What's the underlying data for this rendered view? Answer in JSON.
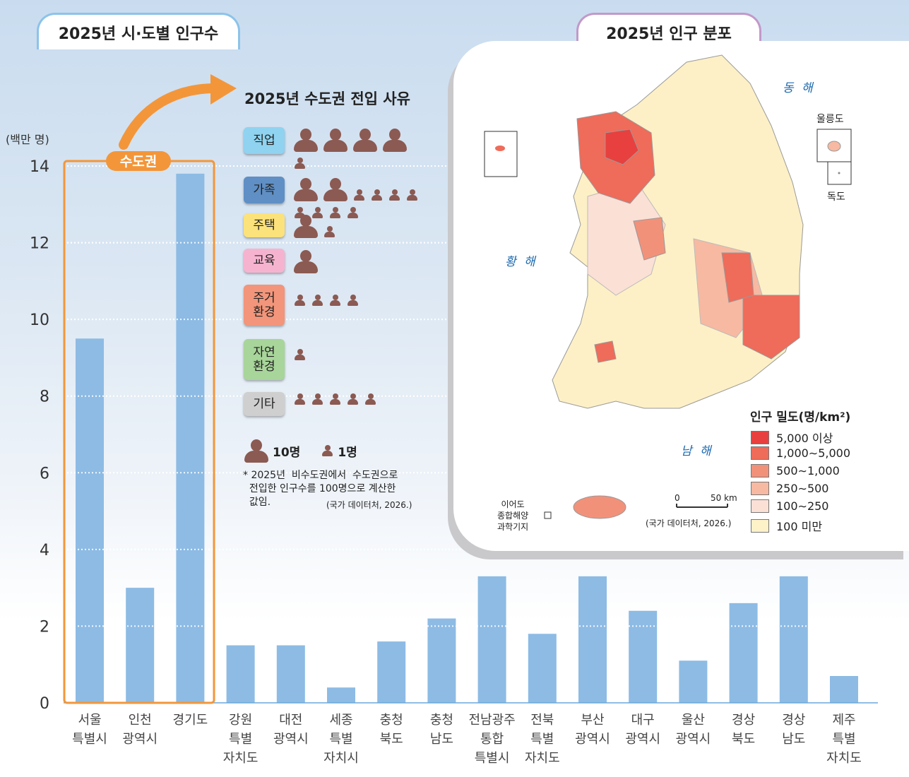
{
  "left_tab": {
    "title": "2025년 시·도별 인구수"
  },
  "right_tab": {
    "title": "2025년 인구 분포"
  },
  "capital_region": {
    "label": "수도권"
  },
  "colors": {
    "bar": "#8dbbe4",
    "capital_box": "#f39639",
    "density": [
      "#e8403e",
      "#ef6b5a",
      "#f2917a",
      "#f7b9a2",
      "#fbe0d6",
      "#fdf2c8"
    ]
  },
  "chart_data": {
    "type": "bar",
    "ylabel": "(백만 명)",
    "ylim": [
      0,
      14
    ],
    "yticks": [
      0,
      2,
      4,
      6,
      8,
      10,
      12,
      14
    ],
    "grid": "dotted horizontal",
    "categories": [
      [
        "서울",
        "특별시"
      ],
      [
        "인천",
        "광역시"
      ],
      [
        "경기도"
      ],
      [
        "강원",
        "특별",
        "자치도"
      ],
      [
        "대전",
        "광역시"
      ],
      [
        "세종",
        "특별",
        "자치시"
      ],
      [
        "충청",
        "북도"
      ],
      [
        "충청",
        "남도"
      ],
      [
        "전남광주",
        "통합",
        "특별시"
      ],
      [
        "전북",
        "특별",
        "자치도"
      ],
      [
        "부산",
        "광역시"
      ],
      [
        "대구",
        "광역시"
      ],
      [
        "울산",
        "광역시"
      ],
      [
        "경상",
        "북도"
      ],
      [
        "경상",
        "남도"
      ],
      [
        "제주",
        "특별",
        "자치도"
      ]
    ],
    "values": [
      9.5,
      3.0,
      13.8,
      1.5,
      1.5,
      0.4,
      1.6,
      2.2,
      3.3,
      1.8,
      3.3,
      2.4,
      1.1,
      2.6,
      3.3,
      0.7
    ]
  },
  "migration": {
    "title": "2025년 수도권 전입 사유",
    "reasons": [
      {
        "label": "직업",
        "value": 41,
        "color": "#8fd3f0"
      },
      {
        "label": "가족",
        "value": 28,
        "color": "#5f8fc4"
      },
      {
        "label": "주택",
        "value": 11,
        "color": "#fbe27a"
      },
      {
        "label": "교육",
        "value": 10,
        "color": "#f6b3d0"
      },
      {
        "label": "주거\n환경",
        "value": 4,
        "color": "#f2957a"
      },
      {
        "label": "자연\n환경",
        "value": 1,
        "color": "#a8d59a"
      },
      {
        "label": "기타",
        "value": 5,
        "color": "#cfcfcf"
      }
    ],
    "legend_big": "10명",
    "legend_small": "1명",
    "note": "* 2025년  비수도권에서  수도권으로\n  전입한 인구수를 100명으로 계산한\n  값임.",
    "source": "(국가 데이터처, 2026.)"
  },
  "map": {
    "seas": {
      "east": "동 해",
      "west": "황 해",
      "south": "남 해"
    },
    "islands": {
      "ulleung": "울릉도",
      "dokdo": "독도",
      "ieodo": "이어도\n종합해양\n과학기지"
    },
    "scale": {
      "zero": "0",
      "km": "50 km"
    },
    "source": "(국가 데이터처, 2026.)",
    "legend_title": "인구 밀도(명/km²)",
    "legend": [
      "5,000 이상",
      "1,000∼5,000",
      "500∼1,000",
      "250∼500",
      "100∼250",
      "100 미만"
    ]
  }
}
